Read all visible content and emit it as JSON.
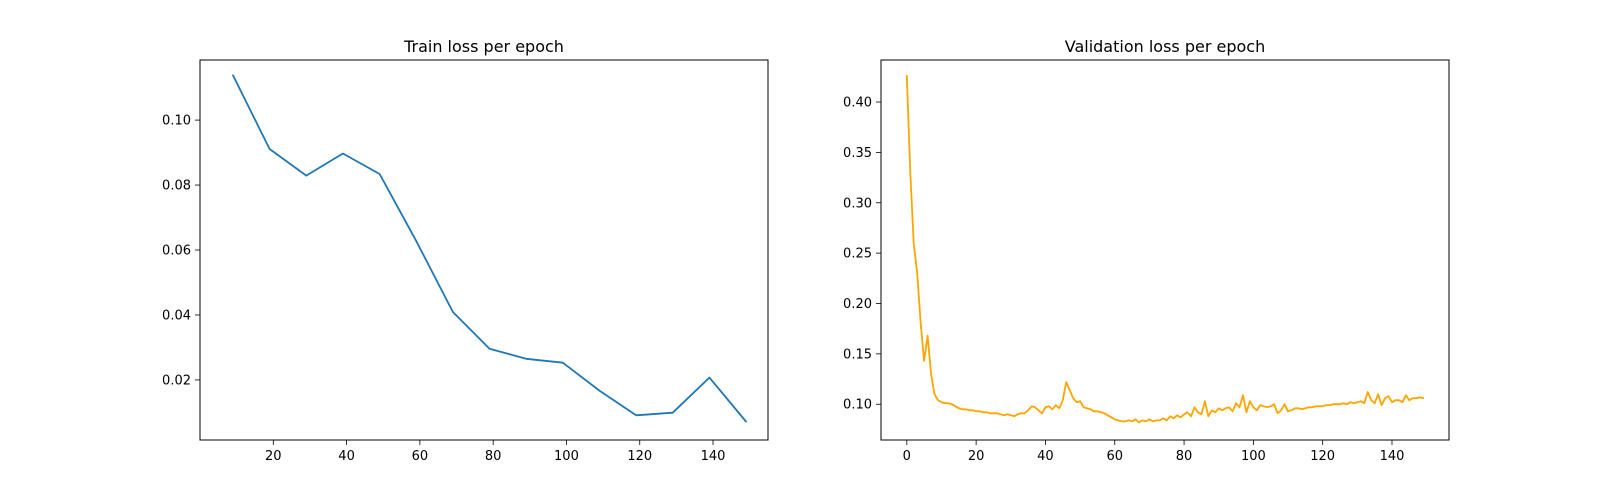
{
  "chart_data": [
    {
      "type": "line",
      "title": "Train loss per epoch",
      "xlabel": "",
      "ylabel": "",
      "xlim": [
        0,
        155
      ],
      "ylim": [
        0.0015,
        0.1185
      ],
      "grid": false,
      "xticks": [
        20,
        40,
        60,
        80,
        100,
        120,
        140
      ],
      "yticks": [
        0.02,
        0.04,
        0.06,
        0.08,
        0.1
      ],
      "xtick_labels": [
        "20",
        "40",
        "60",
        "80",
        "100",
        "120",
        "140"
      ],
      "ytick_labels": [
        "0.02",
        "0.04",
        "0.06",
        "0.08",
        "0.10"
      ],
      "series": [
        {
          "color": "#1f77b4",
          "x": [
            9,
            19,
            29,
            39,
            49,
            59,
            69,
            79,
            89,
            99,
            109,
            119,
            129,
            139,
            149
          ],
          "y": [
            0.1138,
            0.0911,
            0.0829,
            0.0897,
            0.0834,
            0.0628,
            0.0409,
            0.0296,
            0.0265,
            0.0253,
            0.0167,
            0.0091,
            0.0099,
            0.0207,
            0.0072
          ]
        }
      ]
    },
    {
      "type": "line",
      "title": "Validation loss per epoch",
      "xlabel": "",
      "ylabel": "",
      "xlim": [
        -7.45,
        156.45
      ],
      "ylim": [
        0.0645,
        0.4417
      ],
      "grid": false,
      "xticks": [
        0,
        20,
        40,
        60,
        80,
        100,
        120,
        140
      ],
      "yticks": [
        0.1,
        0.15,
        0.2,
        0.25,
        0.3,
        0.35,
        0.4
      ],
      "xtick_labels": [
        "0",
        "20",
        "40",
        "60",
        "80",
        "100",
        "120",
        "140"
      ],
      "ytick_labels": [
        "0.10",
        "0.15",
        "0.20",
        "0.25",
        "0.30",
        "0.35",
        "0.40"
      ],
      "series": [
        {
          "color": "#ffa500",
          "x": [
            0,
            1,
            2,
            3,
            4,
            5,
            6,
            7,
            8,
            9,
            10,
            11,
            12,
            13,
            14,
            15,
            16,
            17,
            18,
            19,
            20,
            21,
            22,
            23,
            24,
            25,
            26,
            27,
            28,
            29,
            30,
            31,
            32,
            33,
            34,
            35,
            36,
            37,
            38,
            39,
            40,
            41,
            42,
            43,
            44,
            45,
            46,
            47,
            48,
            49,
            50,
            51,
            52,
            53,
            54,
            55,
            56,
            57,
            58,
            59,
            60,
            61,
            62,
            63,
            64,
            65,
            66,
            67,
            68,
            69,
            70,
            71,
            72,
            73,
            74,
            75,
            76,
            77,
            78,
            79,
            80,
            81,
            82,
            83,
            84,
            85,
            86,
            87,
            88,
            89,
            90,
            91,
            92,
            93,
            94,
            95,
            96,
            97,
            98,
            99,
            100,
            101,
            102,
            103,
            104,
            105,
            106,
            107,
            108,
            109,
            110,
            111,
            112,
            113,
            114,
            115,
            116,
            117,
            118,
            119,
            120,
            121,
            122,
            123,
            124,
            125,
            126,
            127,
            128,
            129,
            130,
            131,
            132,
            133,
            134,
            135,
            136,
            137,
            138,
            139,
            140,
            141,
            142,
            143,
            144,
            145,
            146,
            147,
            148,
            149
          ],
          "y": [
            0.426,
            0.33,
            0.26,
            0.23,
            0.18,
            0.143,
            0.168,
            0.13,
            0.11,
            0.104,
            0.102,
            0.101,
            0.101,
            0.1,
            0.098,
            0.096,
            0.095,
            0.095,
            0.094,
            0.094,
            0.093,
            0.093,
            0.092,
            0.092,
            0.091,
            0.091,
            0.091,
            0.09,
            0.089,
            0.09,
            0.089,
            0.088,
            0.09,
            0.091,
            0.091,
            0.094,
            0.098,
            0.097,
            0.094,
            0.091,
            0.097,
            0.098,
            0.095,
            0.099,
            0.096,
            0.104,
            0.122,
            0.114,
            0.106,
            0.102,
            0.103,
            0.097,
            0.096,
            0.095,
            0.093,
            0.093,
            0.092,
            0.091,
            0.089,
            0.087,
            0.085,
            0.084,
            0.083,
            0.083,
            0.084,
            0.083,
            0.085,
            0.082,
            0.084,
            0.083,
            0.085,
            0.083,
            0.084,
            0.084,
            0.086,
            0.084,
            0.088,
            0.086,
            0.089,
            0.087,
            0.09,
            0.092,
            0.088,
            0.097,
            0.092,
            0.09,
            0.103,
            0.088,
            0.094,
            0.092,
            0.096,
            0.094,
            0.096,
            0.097,
            0.093,
            0.101,
            0.097,
            0.109,
            0.092,
            0.103,
            0.097,
            0.094,
            0.099,
            0.098,
            0.097,
            0.098,
            0.1,
            0.091,
            0.094,
            0.1,
            0.093,
            0.094,
            0.096,
            0.096,
            0.095,
            0.096,
            0.097,
            0.097,
            0.098,
            0.098,
            0.098,
            0.099,
            0.099,
            0.1,
            0.1,
            0.1,
            0.101,
            0.1,
            0.102,
            0.101,
            0.102,
            0.103,
            0.101,
            0.112,
            0.104,
            0.101,
            0.11,
            0.099,
            0.106,
            0.108,
            0.102,
            0.104,
            0.104,
            0.102,
            0.109,
            0.104,
            0.106,
            0.106,
            0.107,
            0.106
          ]
        }
      ]
    }
  ]
}
